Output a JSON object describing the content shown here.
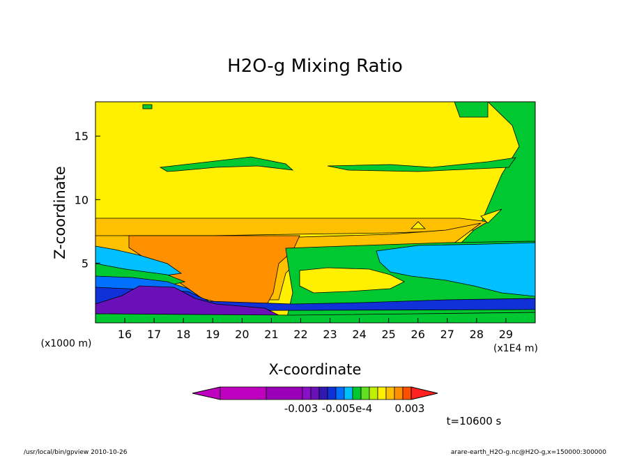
{
  "chart_data": {
    "type": "heatmap",
    "title": "H2O-g Mixing Ratio",
    "xlabel": "X-coordinate",
    "ylabel": "Z-coordinate",
    "x_unit_label": "(x1E4 m)",
    "y_unit_label": "(x1000 m)",
    "x_ticks": [
      "16",
      "17",
      "18",
      "19",
      "20",
      "21",
      "22",
      "23",
      "24",
      "25",
      "26",
      "27",
      "28",
      "29"
    ],
    "y_ticks": [
      "5",
      "10",
      "15"
    ],
    "xlim": [
      15.0,
      30.0
    ],
    "ylim": [
      0.3,
      17.7
    ],
    "grid": false,
    "colorbar": {
      "labels": [
        "-0.003",
        "-0.005e-4",
        "0.003"
      ],
      "colors": [
        "#c000c0",
        "#c000c0",
        "#9a00b8",
        "#8a10c8",
        "#6a10b8",
        "#3018b0",
        "#1030d8",
        "#0070ff",
        "#00c0ff",
        "#00c830",
        "#60e020",
        "#c0f000",
        "#fff000",
        "#ffc000",
        "#ff9000",
        "#ff5000",
        "#ff2020"
      ]
    },
    "time_label": "t=10600 s"
  },
  "footer": {
    "left": "/usr/local/bin/gpview  2010-10-26",
    "right": "arare-earth_H2O-g.nc@H2O-g,x=150000:300000"
  }
}
